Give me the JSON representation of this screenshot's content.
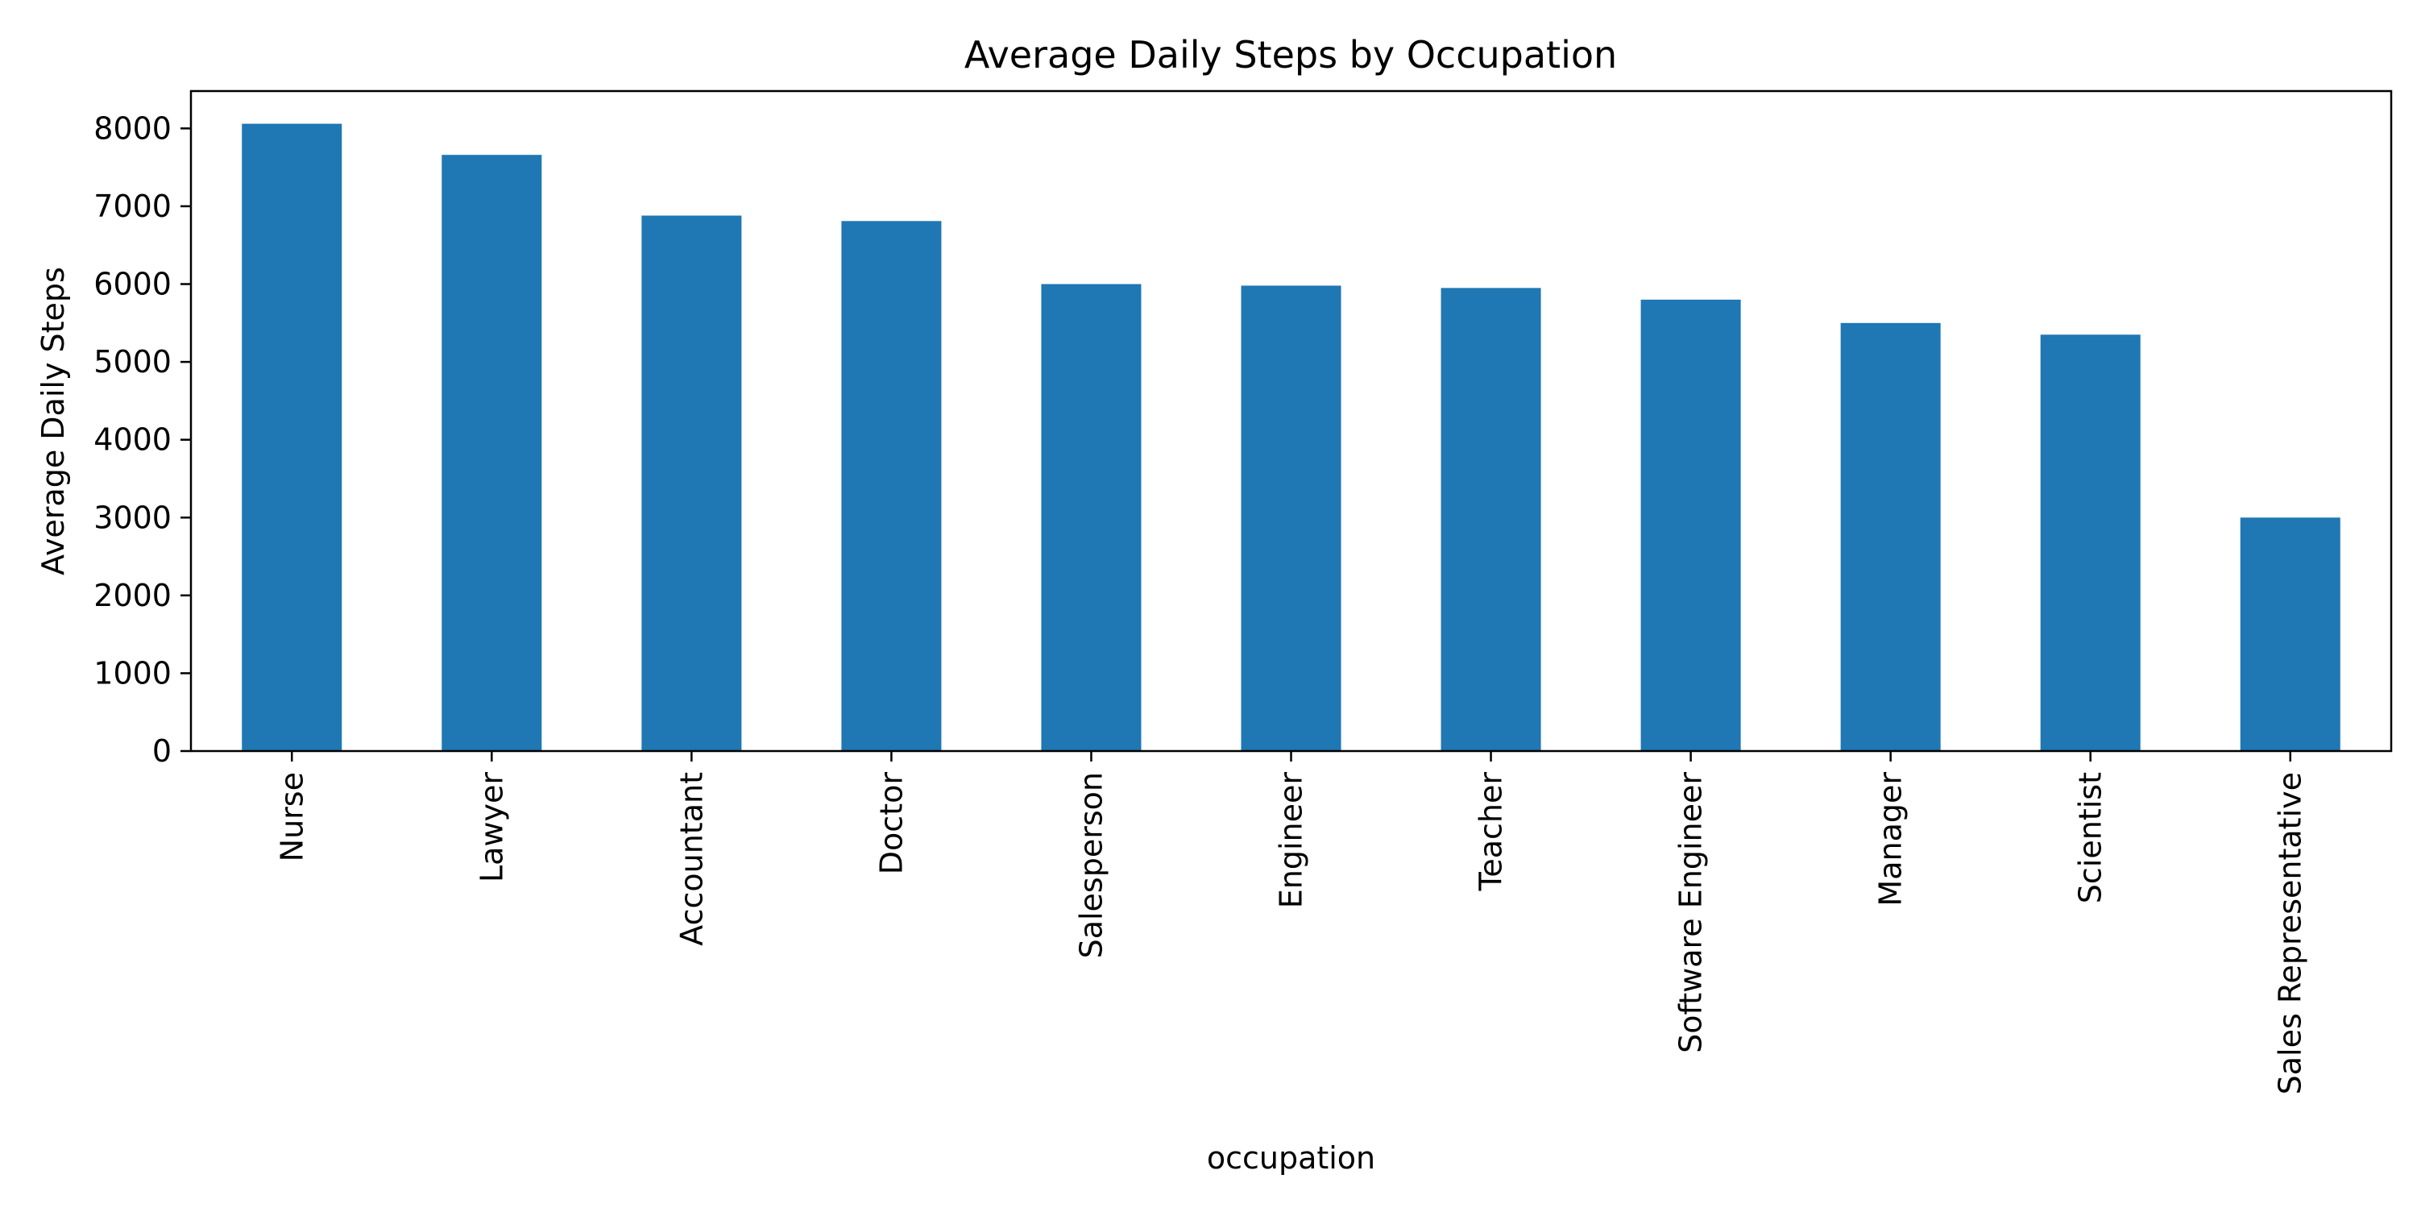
{
  "chart_data": {
    "type": "bar",
    "title": "Average Daily Steps by Occupation",
    "xlabel": "occupation",
    "ylabel": "Average Daily Steps",
    "categories": [
      "Nurse",
      "Lawyer",
      "Accountant",
      "Doctor",
      "Salesperson",
      "Engineer",
      "Teacher",
      "Software Engineer",
      "Manager",
      "Scientist",
      "Sales Representative"
    ],
    "values": [
      8060,
      7660,
      6880,
      6810,
      6000,
      5980,
      5950,
      5800,
      5500,
      5350,
      3000
    ],
    "ylim": [
      0,
      8480
    ],
    "yticks": [
      0,
      1000,
      2000,
      3000,
      4000,
      5000,
      6000,
      7000,
      8000
    ],
    "bar_color": "#1f77b4",
    "grid": false,
    "legend": "none"
  }
}
